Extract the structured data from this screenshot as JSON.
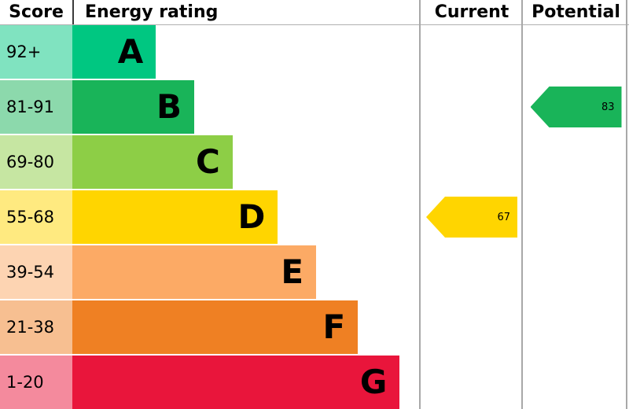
{
  "header": {
    "score": "Score",
    "rating": "Energy rating",
    "current": "Current",
    "potential": "Potential"
  },
  "bands": [
    {
      "range": "92+",
      "letter": "A",
      "color": "#00c781",
      "tint": "#80e3c0",
      "width_pct": 24
    },
    {
      "range": "81-91",
      "letter": "B",
      "color": "#19b459",
      "tint": "#8cd9ac",
      "width_pct": 35
    },
    {
      "range": "69-80",
      "letter": "C",
      "color": "#8dce46",
      "tint": "#c6e6a2",
      "width_pct": 46
    },
    {
      "range": "55-68",
      "letter": "D",
      "color": "#ffd500",
      "tint": "#ffea80",
      "width_pct": 59
    },
    {
      "range": "39-54",
      "letter": "E",
      "color": "#fcaa65",
      "tint": "#fdd4b2",
      "width_pct": 70
    },
    {
      "range": "21-38",
      "letter": "F",
      "color": "#ef8023",
      "tint": "#f7bf91",
      "width_pct": 82
    },
    {
      "range": "1-20",
      "letter": "G",
      "color": "#e9153b",
      "tint": "#f48a9d",
      "width_pct": 94
    }
  ],
  "current": {
    "value": 67,
    "band": "D",
    "row": 3,
    "color": "#ffd500"
  },
  "potential": {
    "value": 83,
    "band": "B",
    "row": 1,
    "color": "#19b459"
  },
  "chart_data": {
    "type": "bar",
    "title": "Energy rating",
    "columns": [
      "Score",
      "Energy rating",
      "Current",
      "Potential"
    ],
    "categories": [
      "A",
      "B",
      "C",
      "D",
      "E",
      "F",
      "G"
    ],
    "score_ranges": [
      "92+",
      "81-91",
      "69-80",
      "55-68",
      "39-54",
      "21-38",
      "1-20"
    ],
    "bar_lengths_pct": [
      24,
      35,
      46,
      59,
      70,
      82,
      94
    ],
    "colors": [
      "#00c781",
      "#19b459",
      "#8dce46",
      "#ffd500",
      "#fcaa65",
      "#ef8023",
      "#e9153b"
    ],
    "current": {
      "value": 67,
      "band": "D"
    },
    "potential": {
      "value": 83,
      "band": "B"
    },
    "grid": false,
    "legend_position": "none"
  }
}
